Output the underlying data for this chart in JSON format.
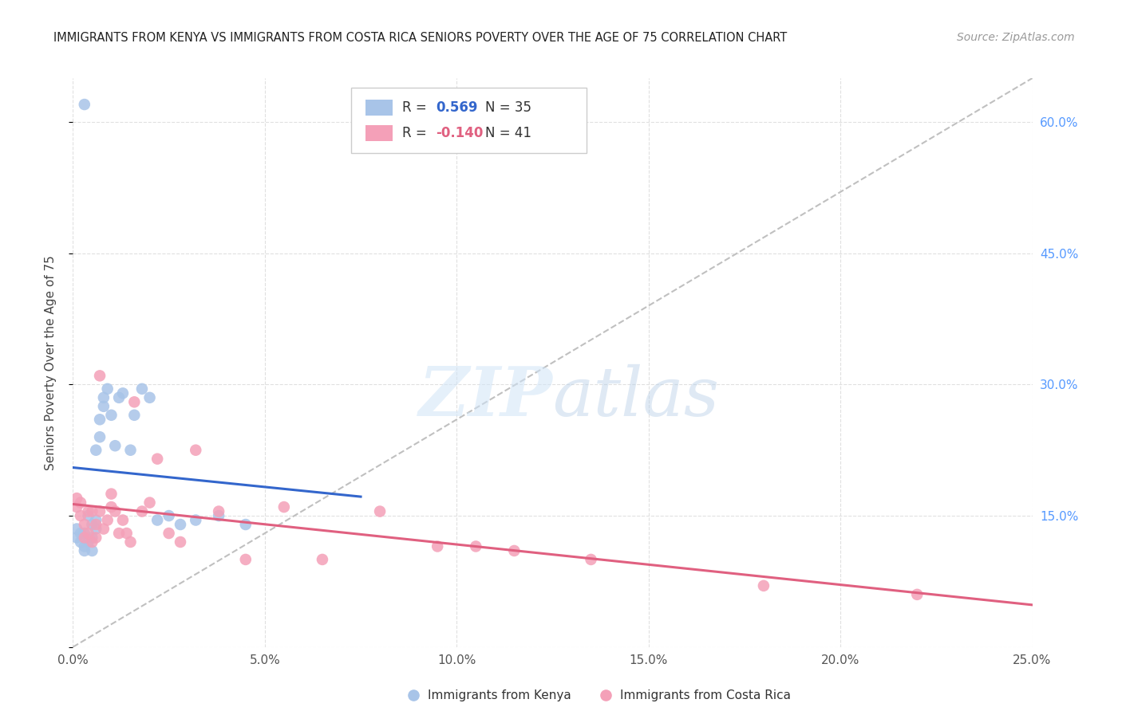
{
  "title": "IMMIGRANTS FROM KENYA VS IMMIGRANTS FROM COSTA RICA SENIORS POVERTY OVER THE AGE OF 75 CORRELATION CHART",
  "source": "Source: ZipAtlas.com",
  "ylabel": "Seniors Poverty Over the Age of 75",
  "xlim": [
    0,
    0.25
  ],
  "ylim": [
    0,
    0.65
  ],
  "xticks": [
    0.0,
    0.05,
    0.1,
    0.15,
    0.2,
    0.25
  ],
  "yticks": [
    0.15,
    0.3,
    0.45,
    0.6
  ],
  "xtick_labels": [
    "0.0%",
    "5.0%",
    "10.0%",
    "15.0%",
    "20.0%",
    "25.0%"
  ],
  "ytick_labels_right": [
    "15.0%",
    "30.0%",
    "45.0%",
    "60.0%"
  ],
  "kenya_R": 0.569,
  "kenya_N": 35,
  "costarica_R": -0.14,
  "costarica_N": 41,
  "kenya_color": "#a8c4e8",
  "costarica_color": "#f4a0b8",
  "kenya_line_color": "#3366cc",
  "costarica_line_color": "#e06080",
  "diagonal_line_color": "#c0c0c0",
  "kenya_x": [
    0.001,
    0.001,
    0.002,
    0.002,
    0.003,
    0.003,
    0.003,
    0.004,
    0.004,
    0.005,
    0.005,
    0.005,
    0.006,
    0.006,
    0.006,
    0.007,
    0.007,
    0.008,
    0.008,
    0.009,
    0.01,
    0.011,
    0.012,
    0.013,
    0.015,
    0.016,
    0.018,
    0.02,
    0.022,
    0.025,
    0.028,
    0.032,
    0.038,
    0.045,
    0.003
  ],
  "kenya_y": [
    0.125,
    0.135,
    0.12,
    0.13,
    0.115,
    0.13,
    0.62,
    0.12,
    0.15,
    0.11,
    0.125,
    0.14,
    0.135,
    0.145,
    0.225,
    0.24,
    0.26,
    0.275,
    0.285,
    0.295,
    0.265,
    0.23,
    0.285,
    0.29,
    0.225,
    0.265,
    0.295,
    0.285,
    0.145,
    0.15,
    0.14,
    0.145,
    0.15,
    0.14,
    0.11
  ],
  "costarica_x": [
    0.001,
    0.001,
    0.002,
    0.002,
    0.003,
    0.003,
    0.004,
    0.004,
    0.005,
    0.005,
    0.006,
    0.006,
    0.007,
    0.007,
    0.008,
    0.009,
    0.01,
    0.01,
    0.011,
    0.012,
    0.013,
    0.014,
    0.015,
    0.016,
    0.018,
    0.02,
    0.022,
    0.025,
    0.028,
    0.032,
    0.038,
    0.045,
    0.055,
    0.065,
    0.08,
    0.095,
    0.105,
    0.115,
    0.135,
    0.18,
    0.22
  ],
  "costarica_y": [
    0.16,
    0.17,
    0.15,
    0.165,
    0.125,
    0.14,
    0.13,
    0.155,
    0.12,
    0.155,
    0.125,
    0.14,
    0.31,
    0.155,
    0.135,
    0.145,
    0.16,
    0.175,
    0.155,
    0.13,
    0.145,
    0.13,
    0.12,
    0.28,
    0.155,
    0.165,
    0.215,
    0.13,
    0.12,
    0.225,
    0.155,
    0.1,
    0.16,
    0.1,
    0.155,
    0.115,
    0.115,
    0.11,
    0.1,
    0.07,
    0.06
  ],
  "watermark_zip": "ZIP",
  "watermark_atlas": "atlas",
  "background_color": "#ffffff",
  "grid_color": "#e0e0e0"
}
